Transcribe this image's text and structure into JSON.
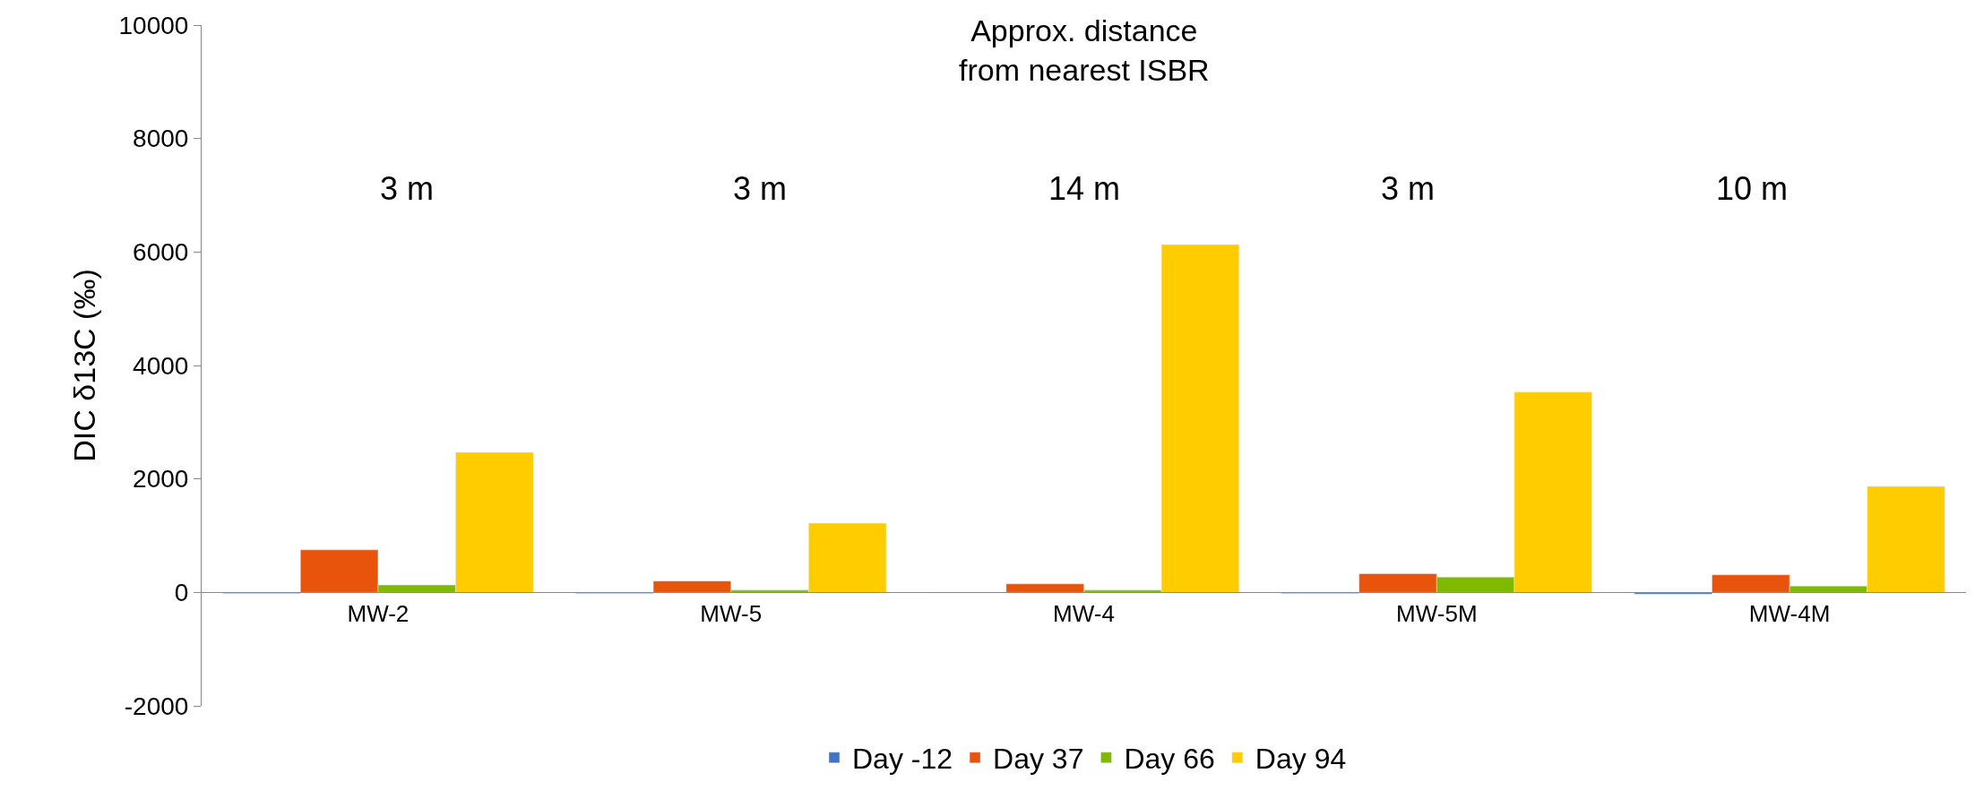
{
  "chart_data": {
    "type": "bar",
    "ylabel": "DIC δ13C (‰)",
    "categories": [
      "MW-2",
      "MW-5",
      "MW-4",
      "MW-5M",
      "MW-4M"
    ],
    "series": [
      {
        "name": "Day -12",
        "color": "#4472c4",
        "values": [
          -20,
          -20,
          -10,
          -20,
          -30
        ]
      },
      {
        "name": "Day 37",
        "color": "#e8540c",
        "values": [
          750,
          200,
          150,
          330,
          310
        ]
      },
      {
        "name": "Day 66",
        "color": "#7fba00",
        "values": [
          130,
          40,
          40,
          270,
          110
        ]
      },
      {
        "name": "Day 94",
        "color": "#ffcc00",
        "values": [
          2470,
          1220,
          6130,
          3530,
          1870
        ]
      }
    ],
    "annotations": [
      "Approx. distance\nfrom nearest ISBR",
      "3 m",
      "3 m",
      "14 m",
      "3 m",
      "10 m"
    ],
    "ylim": [
      -2000,
      10000
    ],
    "yticks": [
      -2000,
      0,
      2000,
      4000,
      6000,
      8000,
      10000
    ],
    "legend": "bottom"
  }
}
